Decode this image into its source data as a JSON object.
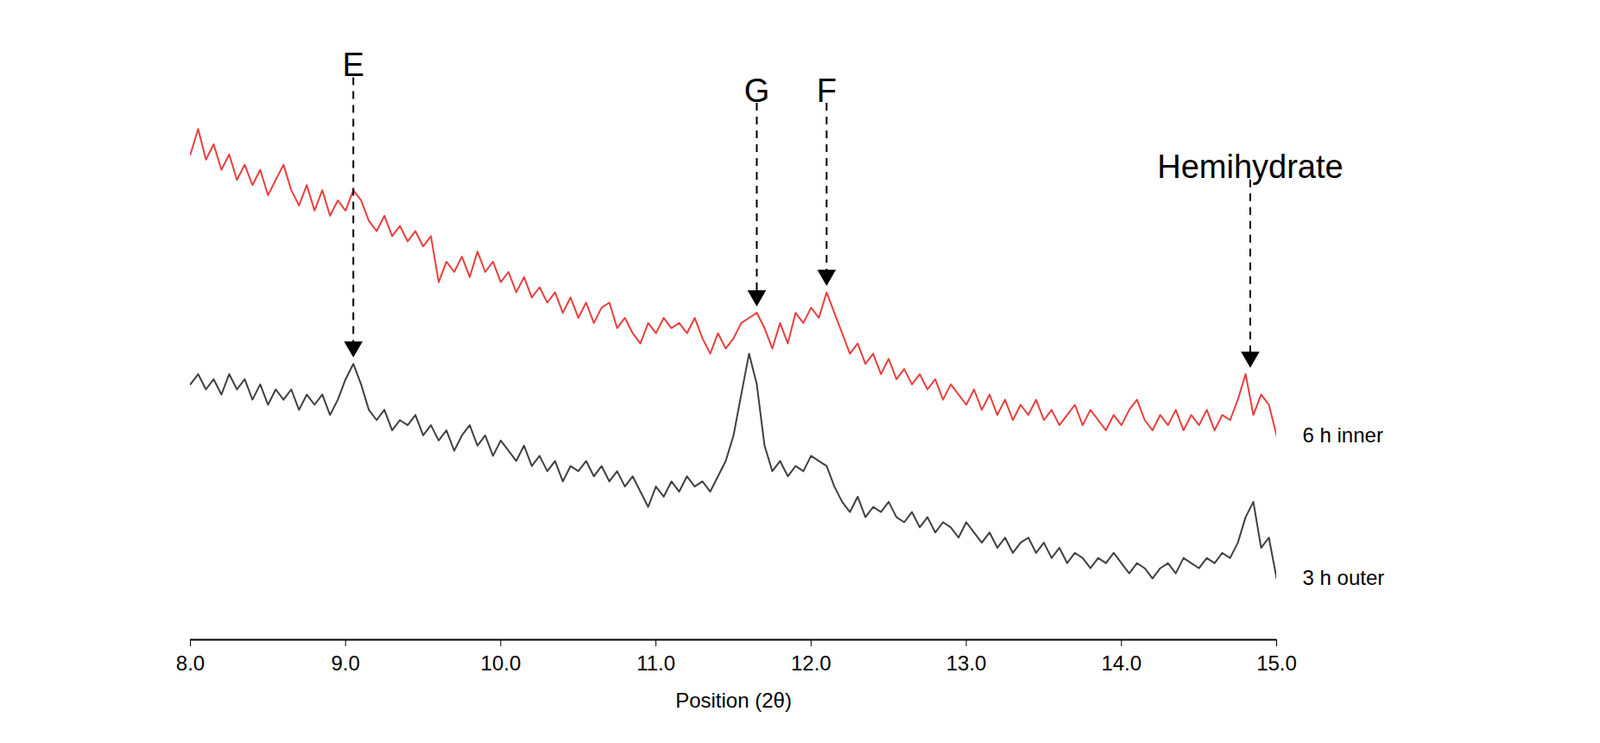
{
  "chart_data": {
    "type": "line",
    "x_label": "Position (2θ)",
    "xlim": [
      8,
      15
    ],
    "xticks": [
      8,
      9,
      10,
      11,
      12,
      13,
      14,
      15
    ],
    "ylim": [
      0,
      115
    ],
    "tick_labels": "x",
    "grid": false,
    "x": [
      8,
      8.05,
      8.1,
      8.15,
      8.2,
      8.25,
      8.3,
      8.35,
      8.4,
      8.45,
      8.5,
      8.55,
      8.6,
      8.65,
      8.7,
      8.75,
      8.8,
      8.85,
      8.9,
      8.95,
      9,
      9.05,
      9.1,
      9.15,
      9.2,
      9.25,
      9.3,
      9.35,
      9.4,
      9.45,
      9.5,
      9.55,
      9.6,
      9.65,
      9.7,
      9.75,
      9.8,
      9.85,
      9.9,
      9.95,
      10,
      10.05,
      10.1,
      10.15,
      10.2,
      10.25,
      10.3,
      10.35,
      10.4,
      10.45,
      10.5,
      10.55,
      10.6,
      10.65,
      10.7,
      10.75,
      10.8,
      10.85,
      10.9,
      10.95,
      11,
      11.05,
      11.1,
      11.15,
      11.2,
      11.25,
      11.3,
      11.35,
      11.4,
      11.45,
      11.5,
      11.55,
      11.6,
      11.65,
      11.7,
      11.75,
      11.8,
      11.85,
      11.9,
      11.95,
      12,
      12.05,
      12.1,
      12.15,
      12.2,
      12.25,
      12.3,
      12.35,
      12.4,
      12.45,
      12.5,
      12.55,
      12.6,
      12.65,
      12.7,
      12.75,
      12.8,
      12.85,
      12.9,
      12.95,
      13,
      13.05,
      13.1,
      13.15,
      13.2,
      13.25,
      13.3,
      13.35,
      13.4,
      13.45,
      13.5,
      13.55,
      13.6,
      13.65,
      13.7,
      13.75,
      13.8,
      13.85,
      13.9,
      13.95,
      14,
      14.05,
      14.1,
      14.15,
      14.2,
      14.25,
      14.3,
      14.35,
      14.4,
      14.45,
      14.5,
      14.55,
      14.6,
      14.65,
      14.7,
      14.75,
      14.8,
      14.85,
      14.9,
      14.95,
      15
    ],
    "series": [
      {
        "name": "6 h inner",
        "color": "#e8403f",
        "values": [
          95,
          100,
          94,
          97,
          92,
          95,
          90,
          93,
          89,
          92,
          87,
          90,
          93,
          88,
          85,
          89,
          84,
          88,
          83,
          86,
          84,
          88,
          86,
          82,
          80,
          83,
          79,
          81,
          78,
          80,
          77,
          79,
          70,
          74,
          72,
          75,
          71,
          76,
          72,
          74,
          70,
          72,
          68,
          71,
          67,
          69,
          66,
          68,
          64,
          67,
          63,
          66,
          62,
          65,
          66,
          61,
          63,
          60,
          58,
          62,
          60,
          63,
          61,
          62,
          60,
          63,
          59,
          56,
          60,
          57,
          59,
          62,
          63,
          64,
          61,
          57,
          62,
          58,
          64,
          62,
          65,
          63,
          68,
          64,
          60,
          56,
          58,
          54,
          56,
          52,
          55,
          51,
          53,
          50,
          52,
          49,
          51,
          47,
          50,
          48,
          46,
          49,
          45,
          48,
          44,
          47,
          43,
          46,
          44,
          47,
          43,
          45,
          42,
          44,
          46,
          42,
          45,
          43,
          41,
          44,
          42,
          45,
          47,
          43,
          41,
          44,
          42,
          45,
          41,
          44,
          42,
          45,
          41,
          44,
          43,
          47,
          52,
          44,
          48,
          46,
          40
        ]
      },
      {
        "name": "3 h outer",
        "color": "#404040",
        "values": [
          50,
          52,
          49,
          51,
          48,
          52,
          49,
          51,
          47,
          50,
          46,
          49,
          47,
          49,
          45,
          48,
          46,
          48,
          44,
          47,
          51,
          54,
          50,
          45,
          43,
          45,
          41,
          43,
          42,
          44,
          40,
          42,
          39,
          41,
          37,
          40,
          42,
          38,
          40,
          36,
          39,
          37,
          35,
          38,
          34,
          36,
          33,
          35,
          31,
          34,
          33,
          35,
          32,
          34,
          31,
          33,
          30,
          32,
          29,
          26,
          30,
          28,
          31,
          29,
          32,
          30,
          31,
          29,
          32,
          35,
          40,
          48,
          56,
          50,
          38,
          33,
          35,
          32,
          34,
          33,
          36,
          35,
          34,
          30,
          27,
          25,
          28,
          24,
          26,
          25,
          27,
          24,
          23,
          25,
          22,
          24,
          21,
          23,
          22,
          20,
          23,
          21,
          19,
          21,
          18,
          20,
          17,
          19,
          20,
          17,
          19,
          16,
          18,
          15,
          17,
          16,
          14,
          16,
          15,
          17,
          15,
          13,
          15,
          14,
          12,
          14,
          15,
          13,
          16,
          15,
          14,
          16,
          15,
          17,
          16,
          19,
          24,
          27,
          18,
          20,
          12
        ]
      }
    ],
    "annotations": [
      {
        "text": "E",
        "x": 9.05,
        "y": 109,
        "arrow_y": 56
      },
      {
        "text": "G",
        "x": 11.65,
        "y": 104,
        "arrow_y": 66
      },
      {
        "text": "F",
        "x": 12.1,
        "y": 104,
        "arrow_y": 70
      },
      {
        "text": "Hemihydrate",
        "x": 14.83,
        "y": 89,
        "arrow_y": 54
      }
    ]
  }
}
